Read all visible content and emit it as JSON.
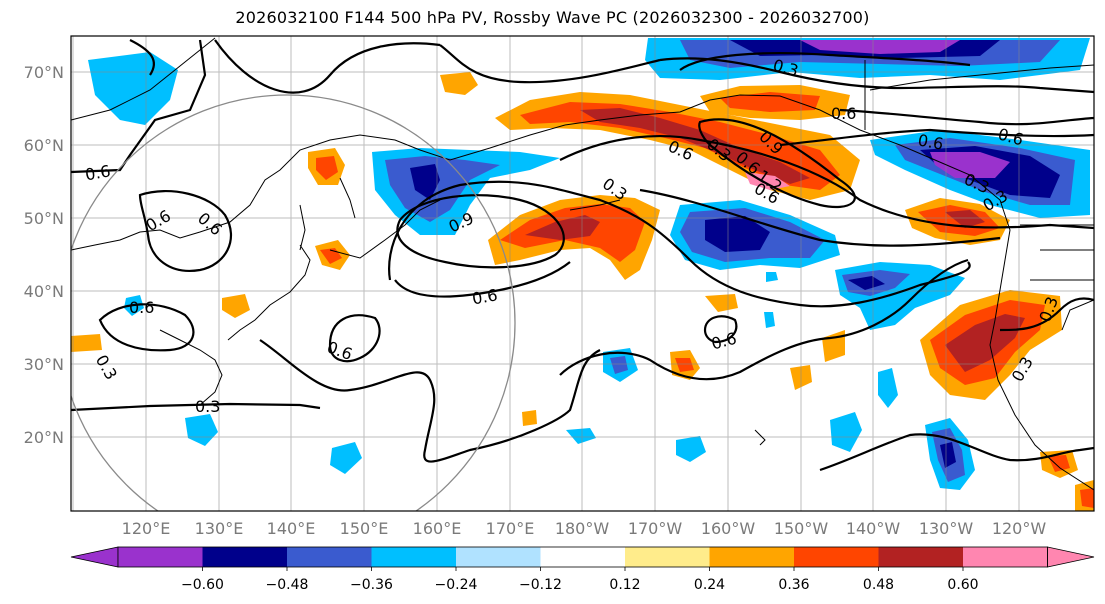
{
  "title": "2026032100 F144 500 hPa PV, Rossby Wave PC (2026032300 - 2026032700)",
  "lat_labels": [
    "70°N",
    "60°N",
    "50°N",
    "40°N",
    "30°N",
    "20°N"
  ],
  "lon_labels": [
    "120°E",
    "130°E",
    "140°E",
    "150°E",
    "160°E",
    "170°E",
    "180°W",
    "170°W",
    "160°W",
    "150°W",
    "140°W",
    "130°W",
    "120°W"
  ],
  "contour_labels": [
    "0.3",
    "0.6",
    "0.6",
    "0.6",
    "0.6",
    "0.9",
    "0.3",
    "0.6",
    "0.6",
    "0.6",
    "0.3",
    "0.6",
    "0.3",
    "0.3",
    "0.6",
    "0.3",
    "1.2",
    "0.9",
    "0.6",
    "0.3",
    "0.3",
    "0.3",
    "0.6",
    "0.6",
    "0.6"
  ],
  "colorbar": {
    "tick_labels": [
      "−0.60",
      "−0.48",
      "−0.36",
      "−0.24",
      "−0.12",
      "0.12",
      "0.24",
      "0.36",
      "0.48",
      "0.60"
    ],
    "colors": [
      "#9a32cd",
      "#00008b",
      "#3a5bcf",
      "#00bfff",
      "#b0e2ff",
      "#ffffff",
      "#ffec8b",
      "#ffa500",
      "#ff4500",
      "#b22222",
      "#ff86b0"
    ]
  },
  "colors": {
    "neg_darkest": "#9a32cd",
    "neg_dark": "#00008b",
    "neg_mid": "#3a5bcf",
    "neg_light": "#00bfff",
    "neg_faint": "#b0e2ff",
    "pos_faint": "#ffec8b",
    "pos_light": "#ffa500",
    "pos_mid": "#ff4500",
    "pos_dark": "#b22222",
    "pos_darkest": "#ff86b0"
  }
}
